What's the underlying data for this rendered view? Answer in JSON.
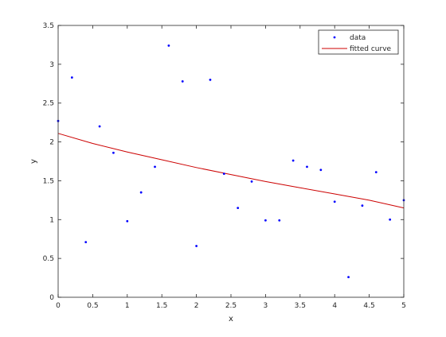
{
  "chart_data": {
    "type": "scatter",
    "title": "",
    "xlabel": "x",
    "ylabel": "y",
    "xlim": [
      0,
      5
    ],
    "ylim": [
      0,
      3.5
    ],
    "xticks": [
      0,
      0.5,
      1,
      1.5,
      2,
      2.5,
      3,
      3.5,
      4,
      4.5,
      5
    ],
    "xtick_labels": [
      "0",
      "0.5",
      "1",
      "1.5",
      "2",
      "2.5",
      "3",
      "3.5",
      "4",
      "4.5",
      "5"
    ],
    "yticks": [
      0,
      0.5,
      1,
      1.5,
      2,
      2.5,
      3,
      3.5
    ],
    "ytick_labels": [
      "0",
      "0.5",
      "1",
      "1.5",
      "2",
      "2.5",
      "3",
      "3.5"
    ],
    "grid": false,
    "legend_position": "top-right",
    "series": [
      {
        "name": "data",
        "kind": "points",
        "color": "#0000ff",
        "x": [
          0,
          0.2,
          0.4,
          0.6,
          0.8,
          1.0,
          1.2,
          1.4,
          1.6,
          1.8,
          2.0,
          2.2,
          2.4,
          2.6,
          2.8,
          3.0,
          3.2,
          3.4,
          3.6,
          3.8,
          4.0,
          4.2,
          4.4,
          4.6,
          4.8,
          5.0
        ],
        "y": [
          2.27,
          2.83,
          0.71,
          2.2,
          1.86,
          0.98,
          1.35,
          1.68,
          3.24,
          2.78,
          0.66,
          2.8,
          1.59,
          1.15,
          1.49,
          0.99,
          0.99,
          1.76,
          1.68,
          1.64,
          1.23,
          0.26,
          1.18,
          1.61,
          1.0,
          1.25
        ]
      },
      {
        "name": "fitted curve",
        "kind": "line",
        "color": "#cc0000",
        "x": [
          0,
          0.5,
          1,
          1.5,
          2,
          2.5,
          3,
          3.5,
          4,
          4.5,
          5
        ],
        "y": [
          2.11,
          1.98,
          1.87,
          1.77,
          1.67,
          1.58,
          1.49,
          1.41,
          1.33,
          1.25,
          1.15
        ]
      }
    ]
  }
}
